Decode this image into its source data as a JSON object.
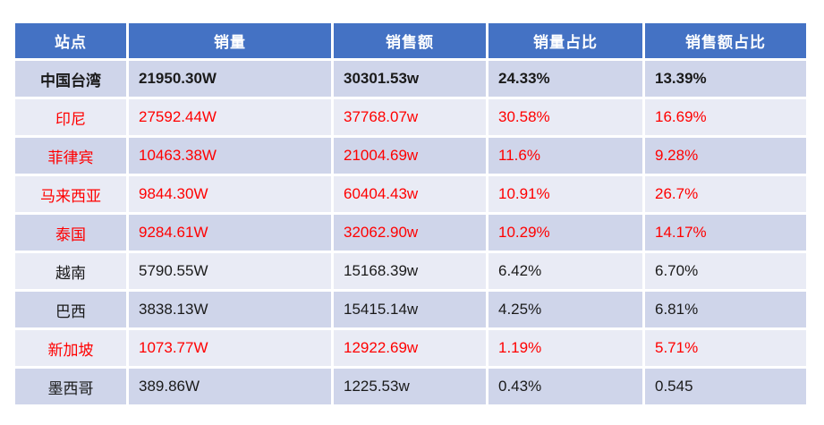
{
  "chart_data": {
    "type": "table",
    "title": "",
    "columns": [
      "站点",
      "销量",
      "销售额",
      "销量占比",
      "销售额占比"
    ],
    "rows": [
      {
        "cells": [
          "中国台湾",
          "21950.30W",
          "30301.53w",
          "24.33%",
          "13.39%"
        ],
        "text_color": "#1A1A1A",
        "bold": true,
        "band": "dark"
      },
      {
        "cells": [
          "印尼",
          "27592.44W",
          "37768.07w",
          "30.58%",
          "16.69%"
        ],
        "text_color": "#FF0000",
        "bold": false,
        "band": "light"
      },
      {
        "cells": [
          "菲律宾",
          "10463.38W",
          "21004.69w",
          "11.6%",
          "9.28%"
        ],
        "text_color": "#FF0000",
        "bold": false,
        "band": "dark"
      },
      {
        "cells": [
          "马来西亚",
          "9844.30W",
          "60404.43w",
          "10.91%",
          "26.7%"
        ],
        "text_color": "#FF0000",
        "bold": false,
        "band": "light"
      },
      {
        "cells": [
          "泰国",
          "9284.61W",
          "32062.90w",
          "10.29%",
          "14.17%"
        ],
        "text_color": "#FF0000",
        "bold": false,
        "band": "dark"
      },
      {
        "cells": [
          "越南",
          "5790.55W",
          "15168.39w",
          "6.42%",
          "6.70%"
        ],
        "text_color": "#1A1A1A",
        "bold": false,
        "band": "light"
      },
      {
        "cells": [
          "巴西",
          "3838.13W",
          "15415.14w",
          "4.25%",
          "6.81%"
        ],
        "text_color": "#1A1A1A",
        "bold": false,
        "band": "dark"
      },
      {
        "cells": [
          "新加坡",
          "1073.77W",
          "12922.69w",
          "1.19%",
          "5.71%"
        ],
        "text_color": "#FF0000",
        "bold": false,
        "band": "light"
      },
      {
        "cells": [
          "墨西哥",
          "389.86W",
          "1225.53w",
          "0.43%",
          "0.545"
        ],
        "text_color": "#1A1A1A",
        "bold": false,
        "band": "dark"
      }
    ]
  },
  "colors": {
    "header_bg": "#4472C4",
    "header_text": "#FFFFFF",
    "band_dark": "#CFD5EA",
    "band_light": "#E9EBF5",
    "highlight_red": "#FF0000",
    "default_text": "#1A1A1A"
  }
}
